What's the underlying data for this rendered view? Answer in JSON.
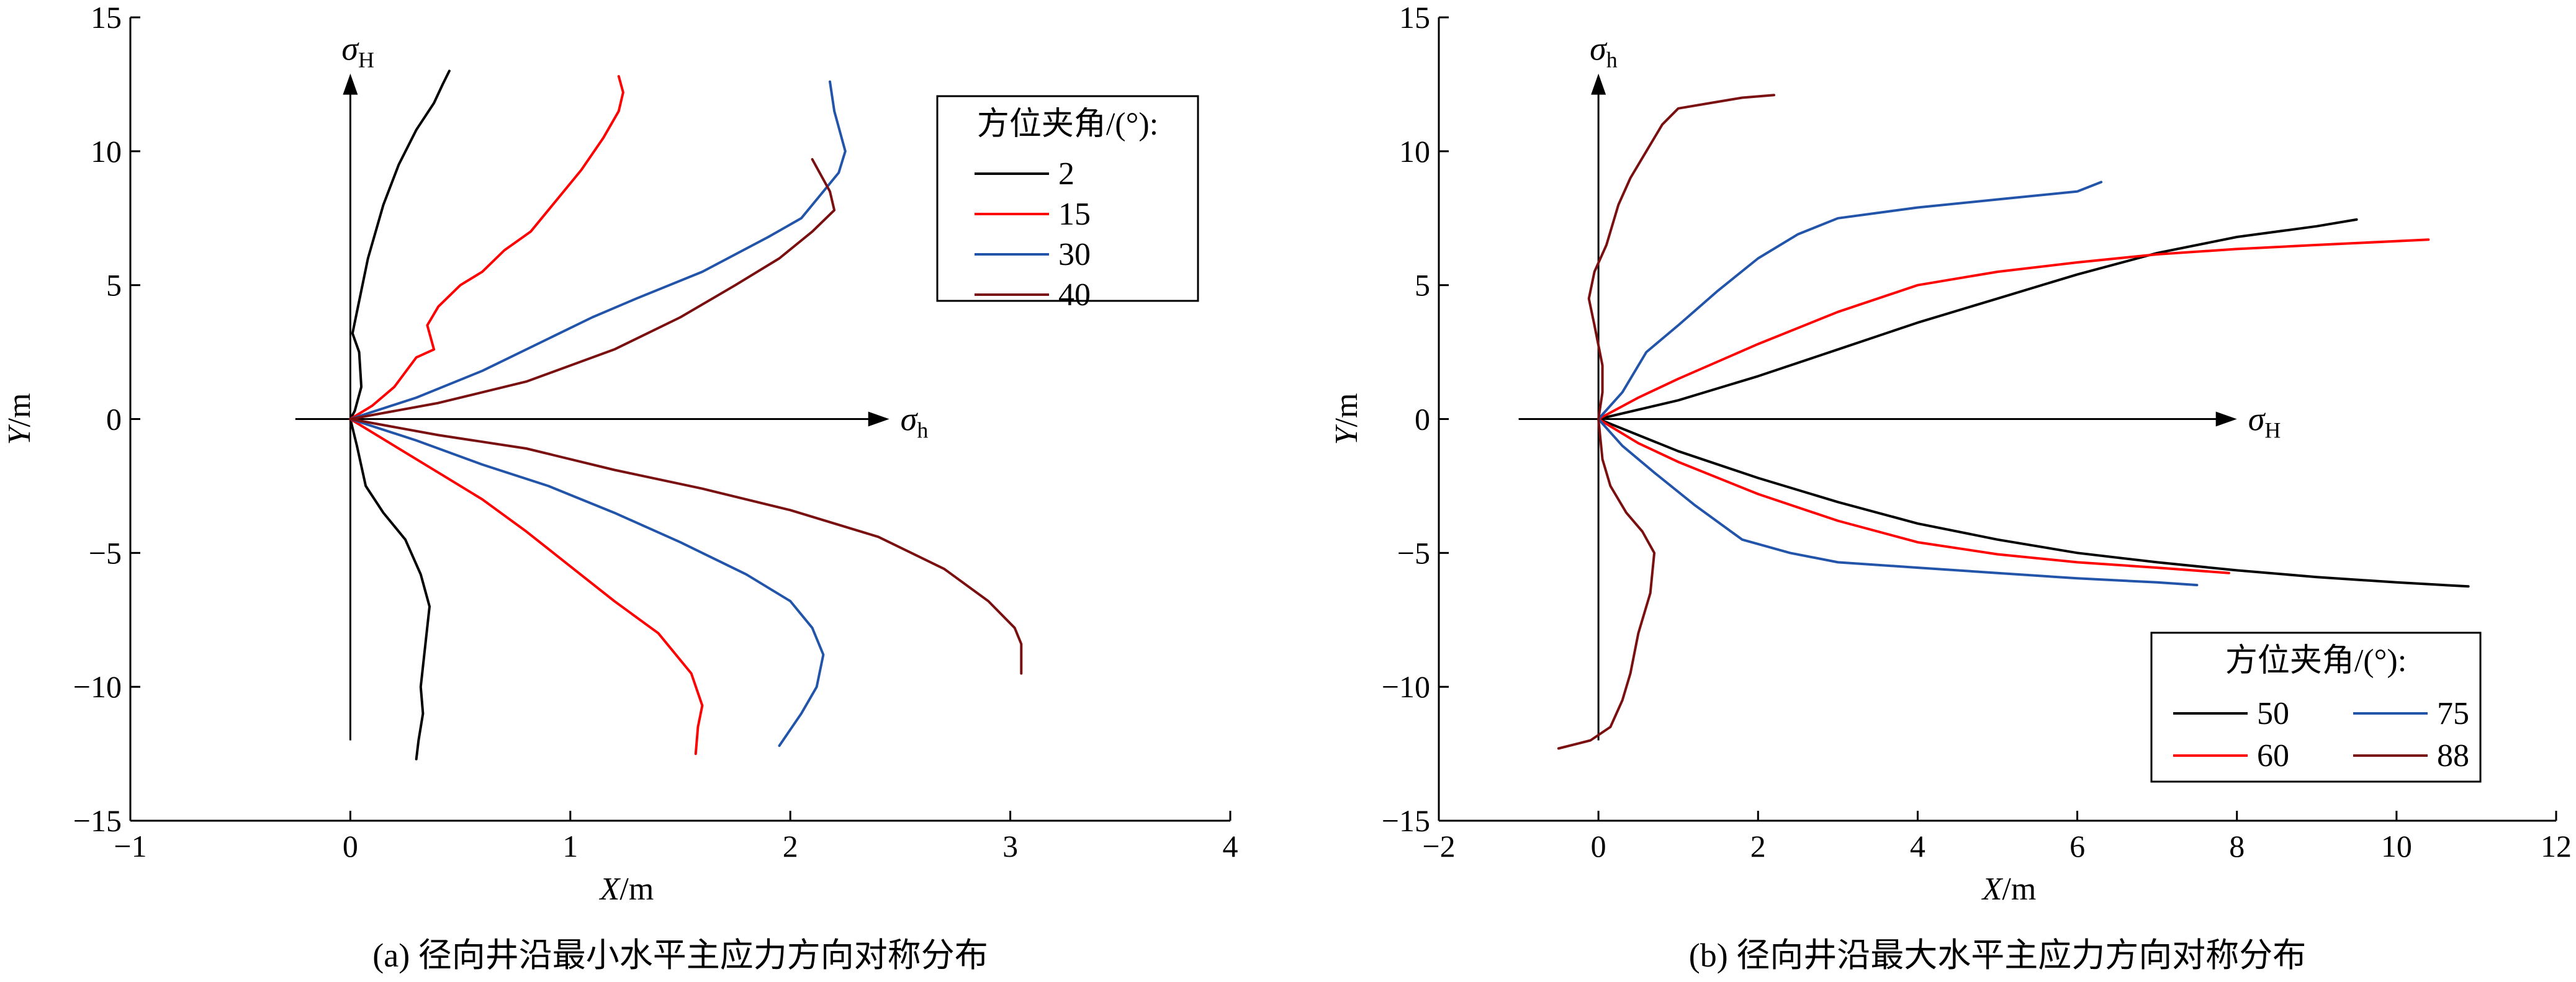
{
  "chart_data": [
    {
      "id": "a",
      "type": "line",
      "caption": "(a) 径向井沿最小水平主应力方向对称分布",
      "xlabel": "X/m",
      "ylabel": "Y/m",
      "xlim": [
        -1,
        4
      ],
      "ylim": [
        -15,
        15
      ],
      "xticks": [
        "−1",
        "0",
        "1",
        "2",
        "3",
        "4"
      ],
      "yticks": [
        "−15",
        "−10",
        "−5",
        "0",
        "5",
        "10",
        "15"
      ],
      "grid": false,
      "legend": {
        "title": "方位夹角/(°):",
        "placement": "top-right",
        "columns": 1
      },
      "axis_arrows": {
        "horizontal": {
          "symbol": "σ",
          "subscript": "h",
          "x_from": -0.25,
          "x_to": 2.45
        },
        "vertical": {
          "symbol": "σ",
          "subscript": "H",
          "y_from": -12,
          "y_to": 12.9
        }
      },
      "series": [
        {
          "name": "2",
          "color": "#000000",
          "points": [
            [
              0.45,
              13
            ],
            [
              0.42,
              12.5
            ],
            [
              0.38,
              11.8
            ],
            [
              0.3,
              10.8
            ],
            [
              0.22,
              9.5
            ],
            [
              0.15,
              8
            ],
            [
              0.08,
              6
            ],
            [
              0.03,
              4
            ],
            [
              0.01,
              3.2
            ],
            [
              0.04,
              2.5
            ],
            [
              0.05,
              1.2
            ],
            [
              0.02,
              0.3
            ],
            [
              0,
              0
            ]
          ],
          "mirror": [
            [
              0,
              0
            ],
            [
              0.03,
              -1
            ],
            [
              0.07,
              -2.5
            ],
            [
              0.15,
              -3.5
            ],
            [
              0.25,
              -4.5
            ],
            [
              0.32,
              -5.8
            ],
            [
              0.36,
              -7
            ],
            [
              0.34,
              -8.5
            ],
            [
              0.32,
              -10
            ],
            [
              0.33,
              -11
            ],
            [
              0.31,
              -12
            ],
            [
              0.3,
              -12.7
            ]
          ]
        },
        {
          "name": "15",
          "color": "#ff0000",
          "points": [
            [
              1.22,
              12.8
            ],
            [
              1.24,
              12.2
            ],
            [
              1.22,
              11.5
            ],
            [
              1.15,
              10.5
            ],
            [
              1.05,
              9.3
            ],
            [
              0.92,
              8
            ],
            [
              0.82,
              7
            ],
            [
              0.7,
              6.3
            ],
            [
              0.6,
              5.5
            ],
            [
              0.5,
              5
            ],
            [
              0.4,
              4.2
            ],
            [
              0.35,
              3.5
            ],
            [
              0.38,
              2.6
            ],
            [
              0.3,
              2.3
            ],
            [
              0.2,
              1.2
            ],
            [
              0.1,
              0.5
            ],
            [
              0,
              0
            ]
          ],
          "mirror": [
            [
              0,
              0
            ],
            [
              0.2,
              -1
            ],
            [
              0.4,
              -2
            ],
            [
              0.6,
              -3
            ],
            [
              0.8,
              -4.2
            ],
            [
              1.0,
              -5.5
            ],
            [
              1.2,
              -6.8
            ],
            [
              1.4,
              -8
            ],
            [
              1.55,
              -9.5
            ],
            [
              1.6,
              -10.7
            ],
            [
              1.58,
              -11.5
            ],
            [
              1.57,
              -12.5
            ]
          ]
        },
        {
          "name": "30",
          "color": "#2255aa",
          "points": [
            [
              2.18,
              12.6
            ],
            [
              2.2,
              11.5
            ],
            [
              2.25,
              10
            ],
            [
              2.22,
              9.2
            ],
            [
              2.15,
              8.5
            ],
            [
              2.05,
              7.5
            ],
            [
              1.9,
              6.8
            ],
            [
              1.6,
              5.5
            ],
            [
              1.3,
              4.5
            ],
            [
              1.1,
              3.8
            ],
            [
              0.9,
              3
            ],
            [
              0.6,
              1.8
            ],
            [
              0.3,
              0.8
            ],
            [
              0,
              0
            ]
          ],
          "mirror": [
            [
              0,
              0
            ],
            [
              0.3,
              -0.8
            ],
            [
              0.6,
              -1.7
            ],
            [
              0.9,
              -2.5
            ],
            [
              1.2,
              -3.5
            ],
            [
              1.5,
              -4.6
            ],
            [
              1.8,
              -5.8
            ],
            [
              2.0,
              -6.8
            ],
            [
              2.1,
              -7.8
            ],
            [
              2.15,
              -8.8
            ],
            [
              2.12,
              -10
            ],
            [
              2.05,
              -11
            ],
            [
              1.95,
              -12.2
            ]
          ]
        },
        {
          "name": "40",
          "color": "#7a0f0f",
          "points": [
            [
              2.1,
              9.7
            ],
            [
              2.18,
              8.5
            ],
            [
              2.2,
              7.8
            ],
            [
              2.1,
              7
            ],
            [
              1.95,
              6
            ],
            [
              1.75,
              5
            ],
            [
              1.5,
              3.8
            ],
            [
              1.2,
              2.6
            ],
            [
              0.8,
              1.4
            ],
            [
              0.4,
              0.6
            ],
            [
              0,
              0
            ]
          ],
          "mirror": [
            [
              0,
              0
            ],
            [
              0.4,
              -0.6
            ],
            [
              0.8,
              -1.1
            ],
            [
              1.2,
              -1.9
            ],
            [
              1.6,
              -2.6
            ],
            [
              2.0,
              -3.4
            ],
            [
              2.4,
              -4.4
            ],
            [
              2.7,
              -5.6
            ],
            [
              2.9,
              -6.8
            ],
            [
              3.02,
              -7.8
            ],
            [
              3.05,
              -8.4
            ],
            [
              3.05,
              -9.5
            ]
          ]
        }
      ]
    },
    {
      "id": "b",
      "type": "line",
      "caption": "(b) 径向井沿最大水平主应力方向对称分布",
      "xlabel": "X/m",
      "ylabel": "Y/m",
      "xlim": [
        -2,
        12
      ],
      "ylim": [
        -15,
        15
      ],
      "xticks": [
        "−2",
        "0",
        "2",
        "4",
        "6",
        "8",
        "10",
        "12"
      ],
      "yticks": [
        "−15",
        "−10",
        "−5",
        "0",
        "5",
        "10",
        "15"
      ],
      "grid": false,
      "legend": {
        "title": "方位夹角/(°):",
        "placement": "bottom-right",
        "columns": 2
      },
      "axis_arrows": {
        "horizontal": {
          "symbol": "σ",
          "subscript": "H",
          "x_from": -1,
          "x_to": 8
        },
        "vertical": {
          "symbol": "σ",
          "subscript": "h",
          "y_from": -12,
          "y_to": 12.9
        }
      },
      "series": [
        {
          "name": "50",
          "color": "#000000",
          "points": [
            [
              0,
              0
            ],
            [
              1,
              0.7
            ],
            [
              2,
              1.6
            ],
            [
              3,
              2.6
            ],
            [
              4,
              3.6
            ],
            [
              5,
              4.5
            ],
            [
              6,
              5.4
            ],
            [
              7,
              6.2
            ],
            [
              8,
              6.8
            ],
            [
              9,
              7.2
            ],
            [
              9.5,
              7.45
            ]
          ],
          "mirror": [
            [
              0,
              0
            ],
            [
              1,
              -1.2
            ],
            [
              2,
              -2.2
            ],
            [
              3,
              -3.1
            ],
            [
              4,
              -3.9
            ],
            [
              5,
              -4.5
            ],
            [
              6,
              -5
            ],
            [
              7,
              -5.35
            ],
            [
              8,
              -5.65
            ],
            [
              9,
              -5.9
            ],
            [
              10,
              -6.1
            ],
            [
              10.9,
              -6.25
            ]
          ]
        },
        {
          "name": "60",
          "color": "#ff0000",
          "points": [
            [
              0,
              0
            ],
            [
              0.5,
              0.8
            ],
            [
              1,
              1.5
            ],
            [
              2,
              2.8
            ],
            [
              3,
              4
            ],
            [
              4,
              5
            ],
            [
              5,
              5.5
            ],
            [
              6,
              5.85
            ],
            [
              7,
              6.15
            ],
            [
              8,
              6.35
            ],
            [
              9,
              6.5
            ],
            [
              10.4,
              6.7
            ]
          ],
          "mirror": [
            [
              0,
              0
            ],
            [
              0.5,
              -0.9
            ],
            [
              1,
              -1.6
            ],
            [
              2,
              -2.8
            ],
            [
              3,
              -3.8
            ],
            [
              4,
              -4.6
            ],
            [
              5,
              -5.05
            ],
            [
              6,
              -5.35
            ],
            [
              7,
              -5.55
            ],
            [
              7.9,
              -5.75
            ]
          ]
        },
        {
          "name": "75",
          "color": "#2255aa",
          "points": [
            [
              0,
              0
            ],
            [
              0.3,
              1
            ],
            [
              0.6,
              2.5
            ],
            [
              1,
              3.5
            ],
            [
              1.5,
              4.8
            ],
            [
              2,
              6
            ],
            [
              2.5,
              6.9
            ],
            [
              3,
              7.5
            ],
            [
              4,
              7.9
            ],
            [
              5,
              8.2
            ],
            [
              6,
              8.5
            ],
            [
              6.3,
              8.85
            ]
          ],
          "mirror": [
            [
              0,
              0
            ],
            [
              0.3,
              -1
            ],
            [
              0.7,
              -2
            ],
            [
              1.2,
              -3.2
            ],
            [
              1.8,
              -4.5
            ],
            [
              2.4,
              -5
            ],
            [
              3,
              -5.35
            ],
            [
              4,
              -5.55
            ],
            [
              5,
              -5.75
            ],
            [
              6,
              -5.95
            ],
            [
              7,
              -6.1
            ],
            [
              7.5,
              -6.2
            ]
          ]
        },
        {
          "name": "88",
          "color": "#7a0f0f",
          "points": [
            [
              2.2,
              12.1
            ],
            [
              1.8,
              12
            ],
            [
              1.4,
              11.8
            ],
            [
              1,
              11.6
            ],
            [
              0.8,
              11
            ],
            [
              0.6,
              10
            ],
            [
              0.4,
              9
            ],
            [
              0.25,
              8
            ],
            [
              0.1,
              6.5
            ],
            [
              -0.05,
              5.5
            ],
            [
              -0.12,
              4.5
            ],
            [
              -0.05,
              3.5
            ],
            [
              0.05,
              2
            ],
            [
              0.05,
              1
            ],
            [
              0,
              0
            ]
          ],
          "mirror": [
            [
              0,
              0
            ],
            [
              0.05,
              -1.5
            ],
            [
              0.15,
              -2.5
            ],
            [
              0.35,
              -3.5
            ],
            [
              0.55,
              -4.2
            ],
            [
              0.7,
              -5
            ],
            [
              0.65,
              -6.5
            ],
            [
              0.5,
              -8
            ],
            [
              0.4,
              -9.5
            ],
            [
              0.3,
              -10.5
            ],
            [
              0.15,
              -11.5
            ],
            [
              -0.1,
              -12
            ],
            [
              -0.5,
              -12.3
            ]
          ]
        }
      ]
    }
  ]
}
